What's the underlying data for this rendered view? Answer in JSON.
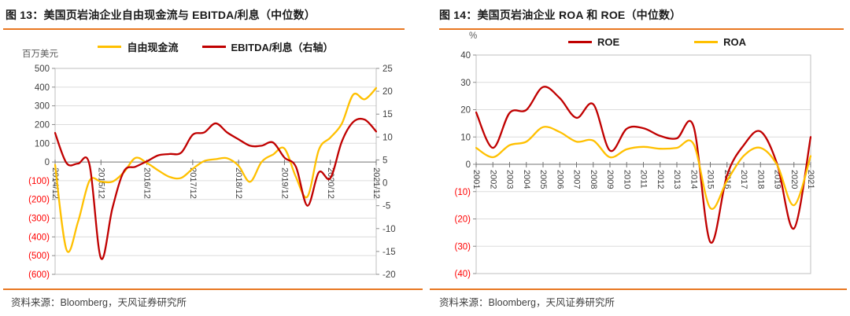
{
  "page": {
    "accent_color": "#E87722",
    "negative_tick_color": "#FF0000",
    "source_note": "资料来源：Bloomberg，天风证券研究所"
  },
  "chart_data": [
    {
      "id": "fcf_ebitda",
      "type": "line",
      "title": "图 13：美国页岩油企业自由现金流与 EBITDA/利息（中位数）",
      "x": [
        "2014/12",
        "2015/03",
        "2015/06",
        "2015/09",
        "2015/12",
        "2016/03",
        "2016/06",
        "2016/09",
        "2016/12",
        "2017/03",
        "2017/06",
        "2017/09",
        "2017/12",
        "2018/03",
        "2018/06",
        "2018/09",
        "2018/12",
        "2019/03",
        "2019/06",
        "2019/09",
        "2019/12",
        "2020/03",
        "2020/06",
        "2020/09",
        "2020/12",
        "2021/03",
        "2021/06",
        "2021/09",
        "2021/12"
      ],
      "x_shown": [
        "2014/12",
        "2015/12",
        "2016/12",
        "2017/12",
        "2018/12",
        "2019/12",
        "2020/12",
        "2021/12"
      ],
      "series": [
        {
          "name": "自由现金流",
          "axis": "left",
          "color": "#FFC000",
          "values": [
            -15,
            -470,
            -320,
            -100,
            -105,
            -105,
            -55,
            22,
            -5,
            -45,
            -80,
            -85,
            -36,
            5,
            15,
            20,
            -20,
            -106,
            0,
            40,
            72,
            -80,
            -185,
            65,
            130,
            205,
            360,
            335,
            395
          ]
        },
        {
          "name": "EBITDA/利息（右轴）",
          "axis": "right",
          "color": "#C00000",
          "values": [
            10.9,
            4.3,
            4.2,
            4.0,
            -16.5,
            -5.5,
            2.5,
            3.5,
            4.7,
            6,
            6.3,
            6.6,
            10.5,
            11,
            13,
            11,
            9.5,
            8.1,
            8.1,
            8.8,
            5.5,
            3.5,
            -5,
            2.3,
            1,
            9,
            13.3,
            13.8,
            11.2
          ]
        }
      ],
      "left_axis": {
        "unit": "百万美元",
        "min": -600,
        "max": 500,
        "step": 100,
        "tick_labels": [
          "500",
          "400",
          "300",
          "200",
          "100",
          "0",
          "(100)",
          "(200)",
          "(300)",
          "(400)",
          "(500)",
          "(600)"
        ]
      },
      "right_axis": {
        "min": -20,
        "max": 25,
        "step": 5,
        "tick_labels": [
          "25",
          "20",
          "15",
          "10",
          "5",
          "0",
          "-5",
          "-10",
          "-15",
          "-20"
        ]
      },
      "grid": true,
      "legend_position": "top",
      "source": "资料来源：Bloomberg，天风证券研究所"
    },
    {
      "id": "roa_roe",
      "type": "line",
      "title": "图 14：美国页岩油企业 ROA 和 ROE（中位数）",
      "x": [
        "2001",
        "2002",
        "2003",
        "2004",
        "2005",
        "2006",
        "2007",
        "2008",
        "2009",
        "2010",
        "2011",
        "2012",
        "2013",
        "2014",
        "2015",
        "2016",
        "2017",
        "2018",
        "2019",
        "2020",
        "2021"
      ],
      "x_shown": [
        "2001",
        "2002",
        "2003",
        "2004",
        "2005",
        "2006",
        "2007",
        "2008",
        "2009",
        "2010",
        "2011",
        "2012",
        "2013",
        "2014",
        "2015",
        "2016",
        "2017",
        "2018",
        "2019",
        "2020",
        "2021"
      ],
      "series": [
        {
          "name": "ROE",
          "axis": "left",
          "color": "#C00000",
          "values": [
            19,
            6,
            18.8,
            19.9,
            28.3,
            24.2,
            17,
            22,
            5,
            13,
            13.2,
            10.4,
            9.5,
            13.8,
            -28.5,
            -4,
            7,
            12,
            0,
            -23.5,
            10
          ]
        },
        {
          "name": "ROA",
          "axis": "left",
          "color": "#FFC000",
          "values": [
            6,
            2.6,
            7,
            8.3,
            13.6,
            11.8,
            8.3,
            8.7,
            2.6,
            5.5,
            6.4,
            5.7,
            6,
            7.4,
            -16,
            -6,
            3.1,
            6,
            -0.3,
            -15,
            3
          ]
        }
      ],
      "left_axis": {
        "unit": "%",
        "min": -40,
        "max": 40,
        "step": 10,
        "tick_labels": [
          "40",
          "30",
          "20",
          "10",
          "0",
          "(10)",
          "(20)",
          "(30)",
          "(40)"
        ]
      },
      "right_axis": null,
      "grid": true,
      "legend_position": "top",
      "source": "资料来源：Bloomberg，天风证券研究所"
    }
  ]
}
